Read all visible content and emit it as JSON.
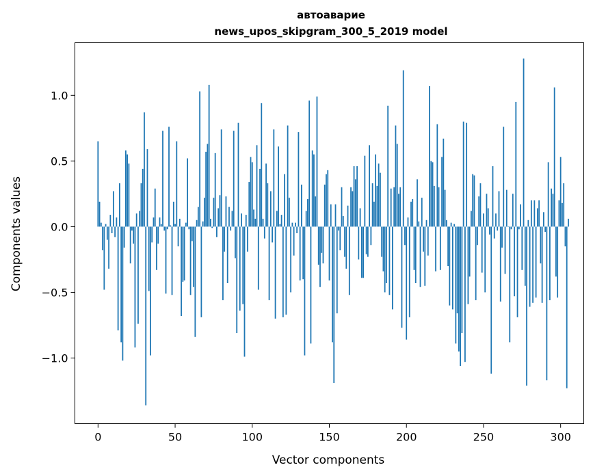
{
  "chart_data": {
    "type": "bar",
    "title_line1": "автоаварие",
    "title_line2": "news_upos_skipgram_300_5_2019 model",
    "xlabel": "Vector components",
    "ylabel": "Components values",
    "xlim": [
      -15,
      315
    ],
    "ylim": [
      -1.5,
      1.4
    ],
    "xticks": [
      0,
      50,
      100,
      150,
      200,
      250,
      300
    ],
    "xtick_labels": [
      "0",
      "50",
      "100",
      "150",
      "200",
      "250",
      "300"
    ],
    "yticks": [
      -1.0,
      -0.5,
      0.0,
      0.5,
      1.0
    ],
    "ytick_labels": [
      "−1.0",
      "−0.5",
      "0.0",
      "0.5",
      "1.0"
    ],
    "bar_color": "#1f77b4",
    "grid": false,
    "values": [
      0.65,
      0.19,
      0.03,
      -0.18,
      -0.48,
      0.02,
      -0.1,
      -0.32,
      0.09,
      -0.05,
      0.27,
      -0.08,
      0.07,
      -0.79,
      0.33,
      -0.88,
      -1.02,
      -0.16,
      0.58,
      0.55,
      0.48,
      -0.28,
      -0.03,
      -0.13,
      -0.92,
      0.1,
      -0.74,
      0.12,
      0.33,
      0.44,
      0.87,
      -1.36,
      0.59,
      -0.49,
      -0.98,
      -0.12,
      0.07,
      0.29,
      -0.33,
      -0.13,
      0.07,
      0.02,
      0.73,
      -0.03,
      -0.51,
      -0.02,
      0.76,
      0.01,
      -0.52,
      0.19,
      0.02,
      0.65,
      -0.15,
      0.06,
      -0.68,
      -0.42,
      -0.41,
      0.03,
      0.52,
      -0.02,
      -0.52,
      -0.11,
      -0.46,
      -0.84,
      0.05,
      0.15,
      1.03,
      -0.69,
      0.04,
      0.22,
      0.57,
      0.63,
      1.08,
      0.06,
      -0.01,
      0.22,
      0.56,
      -0.08,
      0.14,
      0.24,
      0.74,
      -0.56,
      -0.19,
      0.23,
      -0.43,
      0.15,
      -0.03,
      0.12,
      0.73,
      -0.24,
      -0.81,
      0.79,
      -0.64,
      0.1,
      -0.59,
      -0.99,
      0.09,
      -0.19,
      0.34,
      0.53,
      0.49,
      0.13,
      0.06,
      0.62,
      -0.48,
      0.44,
      0.94,
      0.06,
      -0.09,
      0.48,
      0.33,
      -0.56,
      0.27,
      -0.12,
      0.74,
      -0.7,
      0.12,
      0.61,
      0.02,
      0.09,
      -0.69,
      0.4,
      -0.67,
      0.77,
      0.22,
      -0.5,
      0.03,
      -0.22,
      0.03,
      -0.05,
      0.72,
      -0.41,
      0.32,
      -0.4,
      -0.98,
      0.12,
      0.21,
      0.96,
      -0.89,
      0.58,
      0.55,
      0.23,
      0.99,
      -0.29,
      -0.46,
      -0.2,
      -0.28,
      0.32,
      0.4,
      0.43,
      -0.41,
      0.17,
      -0.88,
      -1.19,
      0.17,
      -0.66,
      -0.03,
      -0.18,
      0.3,
      0.08,
      -0.23,
      -0.32,
      0.16,
      -0.52,
      0.3,
      0.27,
      0.46,
      0.36,
      0.46,
      -0.25,
      0.14,
      -0.39,
      -0.39,
      0.54,
      -0.21,
      -0.23,
      0.62,
      -0.14,
      0.33,
      0.19,
      0.55,
      0.31,
      0.48,
      0.41,
      -0.23,
      -0.34,
      -0.5,
      -0.43,
      0.92,
      -0.52,
      0.29,
      -0.63,
      0.3,
      0.77,
      0.63,
      0.25,
      0.3,
      -0.77,
      1.19,
      -0.14,
      -0.86,
      0.07,
      -0.69,
      0.19,
      0.21,
      -0.33,
      -0.43,
      0.36,
      0.04,
      -0.46,
      0.22,
      -0.19,
      -0.45,
      0.05,
      -0.22,
      1.07,
      0.5,
      0.49,
      0.31,
      -0.34,
      0.78,
      0.3,
      -0.33,
      0.53,
      0.67,
      0.28,
      0.05,
      -0.3,
      -0.6,
      0.03,
      -0.63,
      0.02,
      -0.89,
      -0.66,
      -0.95,
      -1.06,
      -0.81,
      0.8,
      -1.03,
      0.79,
      -0.59,
      -0.38,
      0.12,
      0.4,
      0.39,
      -0.56,
      -0.14,
      0.23,
      0.33,
      -0.35,
      0.1,
      -0.5,
      0.25,
      0.14,
      -0.06,
      -1.12,
      0.46,
      -0.09,
      0.1,
      -0.03,
      0.27,
      -0.57,
      -0.16,
      0.76,
      -0.36,
      0.28,
      0.0,
      -0.88,
      -0.02,
      0.25,
      -0.53,
      0.95,
      -0.69,
      -0.02,
      0.17,
      -0.33,
      1.28,
      -0.45,
      -1.21,
      0.05,
      -0.61,
      0.2,
      -0.58,
      0.2,
      -0.54,
      0.14,
      0.2,
      -0.28,
      -0.58,
      0.11,
      -0.04,
      -1.17,
      0.49,
      -0.56,
      0.29,
      0.25,
      1.06,
      -0.38,
      -0.54,
      0.2,
      0.53,
      0.18,
      0.33,
      -0.15,
      -1.23,
      0.06
    ]
  }
}
